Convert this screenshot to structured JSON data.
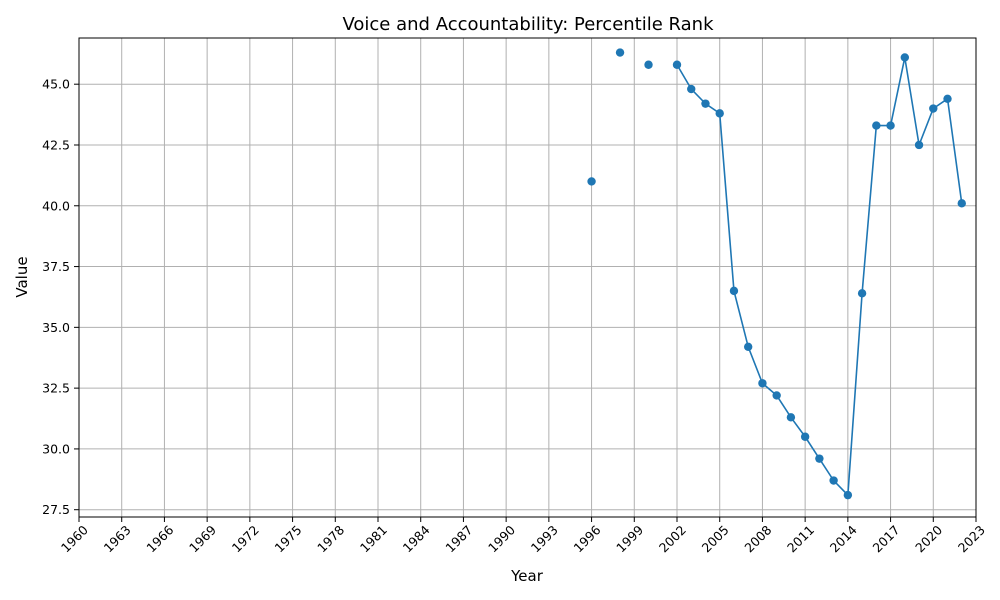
{
  "chart_data": {
    "type": "line",
    "title": "Voice and Accountability: Percentile Rank",
    "xlabel": "Year",
    "ylabel": "Value",
    "xlim": [
      1960,
      2023
    ],
    "ylim": [
      27.2,
      46.9
    ],
    "x_ticks": [
      1960,
      1963,
      1966,
      1969,
      1972,
      1975,
      1978,
      1981,
      1984,
      1987,
      1990,
      1993,
      1996,
      1999,
      2002,
      2005,
      2008,
      2011,
      2014,
      2017,
      2020,
      2023
    ],
    "x_tick_labels": [
      "1960",
      "1963",
      "1966",
      "1969",
      "1972",
      "1975",
      "1978",
      "1981",
      "1984",
      "1987",
      "1990",
      "1993",
      "1996",
      "1999",
      "2002",
      "2005",
      "2008",
      "2011",
      "2014",
      "2017",
      "2020",
      "2023"
    ],
    "y_ticks": [
      27.5,
      30.0,
      32.5,
      35.0,
      37.5,
      40.0,
      42.5,
      45.0
    ],
    "y_tick_labels": [
      "27.5",
      "30.0",
      "32.5",
      "35.0",
      "37.5",
      "40.0",
      "42.5",
      "45.0"
    ],
    "grid": true,
    "color": "#1f77b4",
    "series": [
      {
        "name": "",
        "x": [
          1996,
          1998,
          2000,
          2002,
          2003,
          2004,
          2005,
          2006,
          2007,
          2008,
          2009,
          2010,
          2011,
          2012,
          2013,
          2014,
          2015,
          2016,
          2017,
          2018,
          2019,
          2020,
          2021,
          2022
        ],
        "y": [
          41.0,
          46.3,
          45.8,
          45.8,
          44.8,
          44.2,
          43.8,
          36.5,
          34.2,
          32.7,
          32.2,
          31.3,
          30.5,
          29.6,
          28.7,
          28.1,
          36.4,
          43.3,
          43.3,
          46.1,
          42.5,
          44.0,
          44.4,
          40.1
        ]
      }
    ]
  }
}
